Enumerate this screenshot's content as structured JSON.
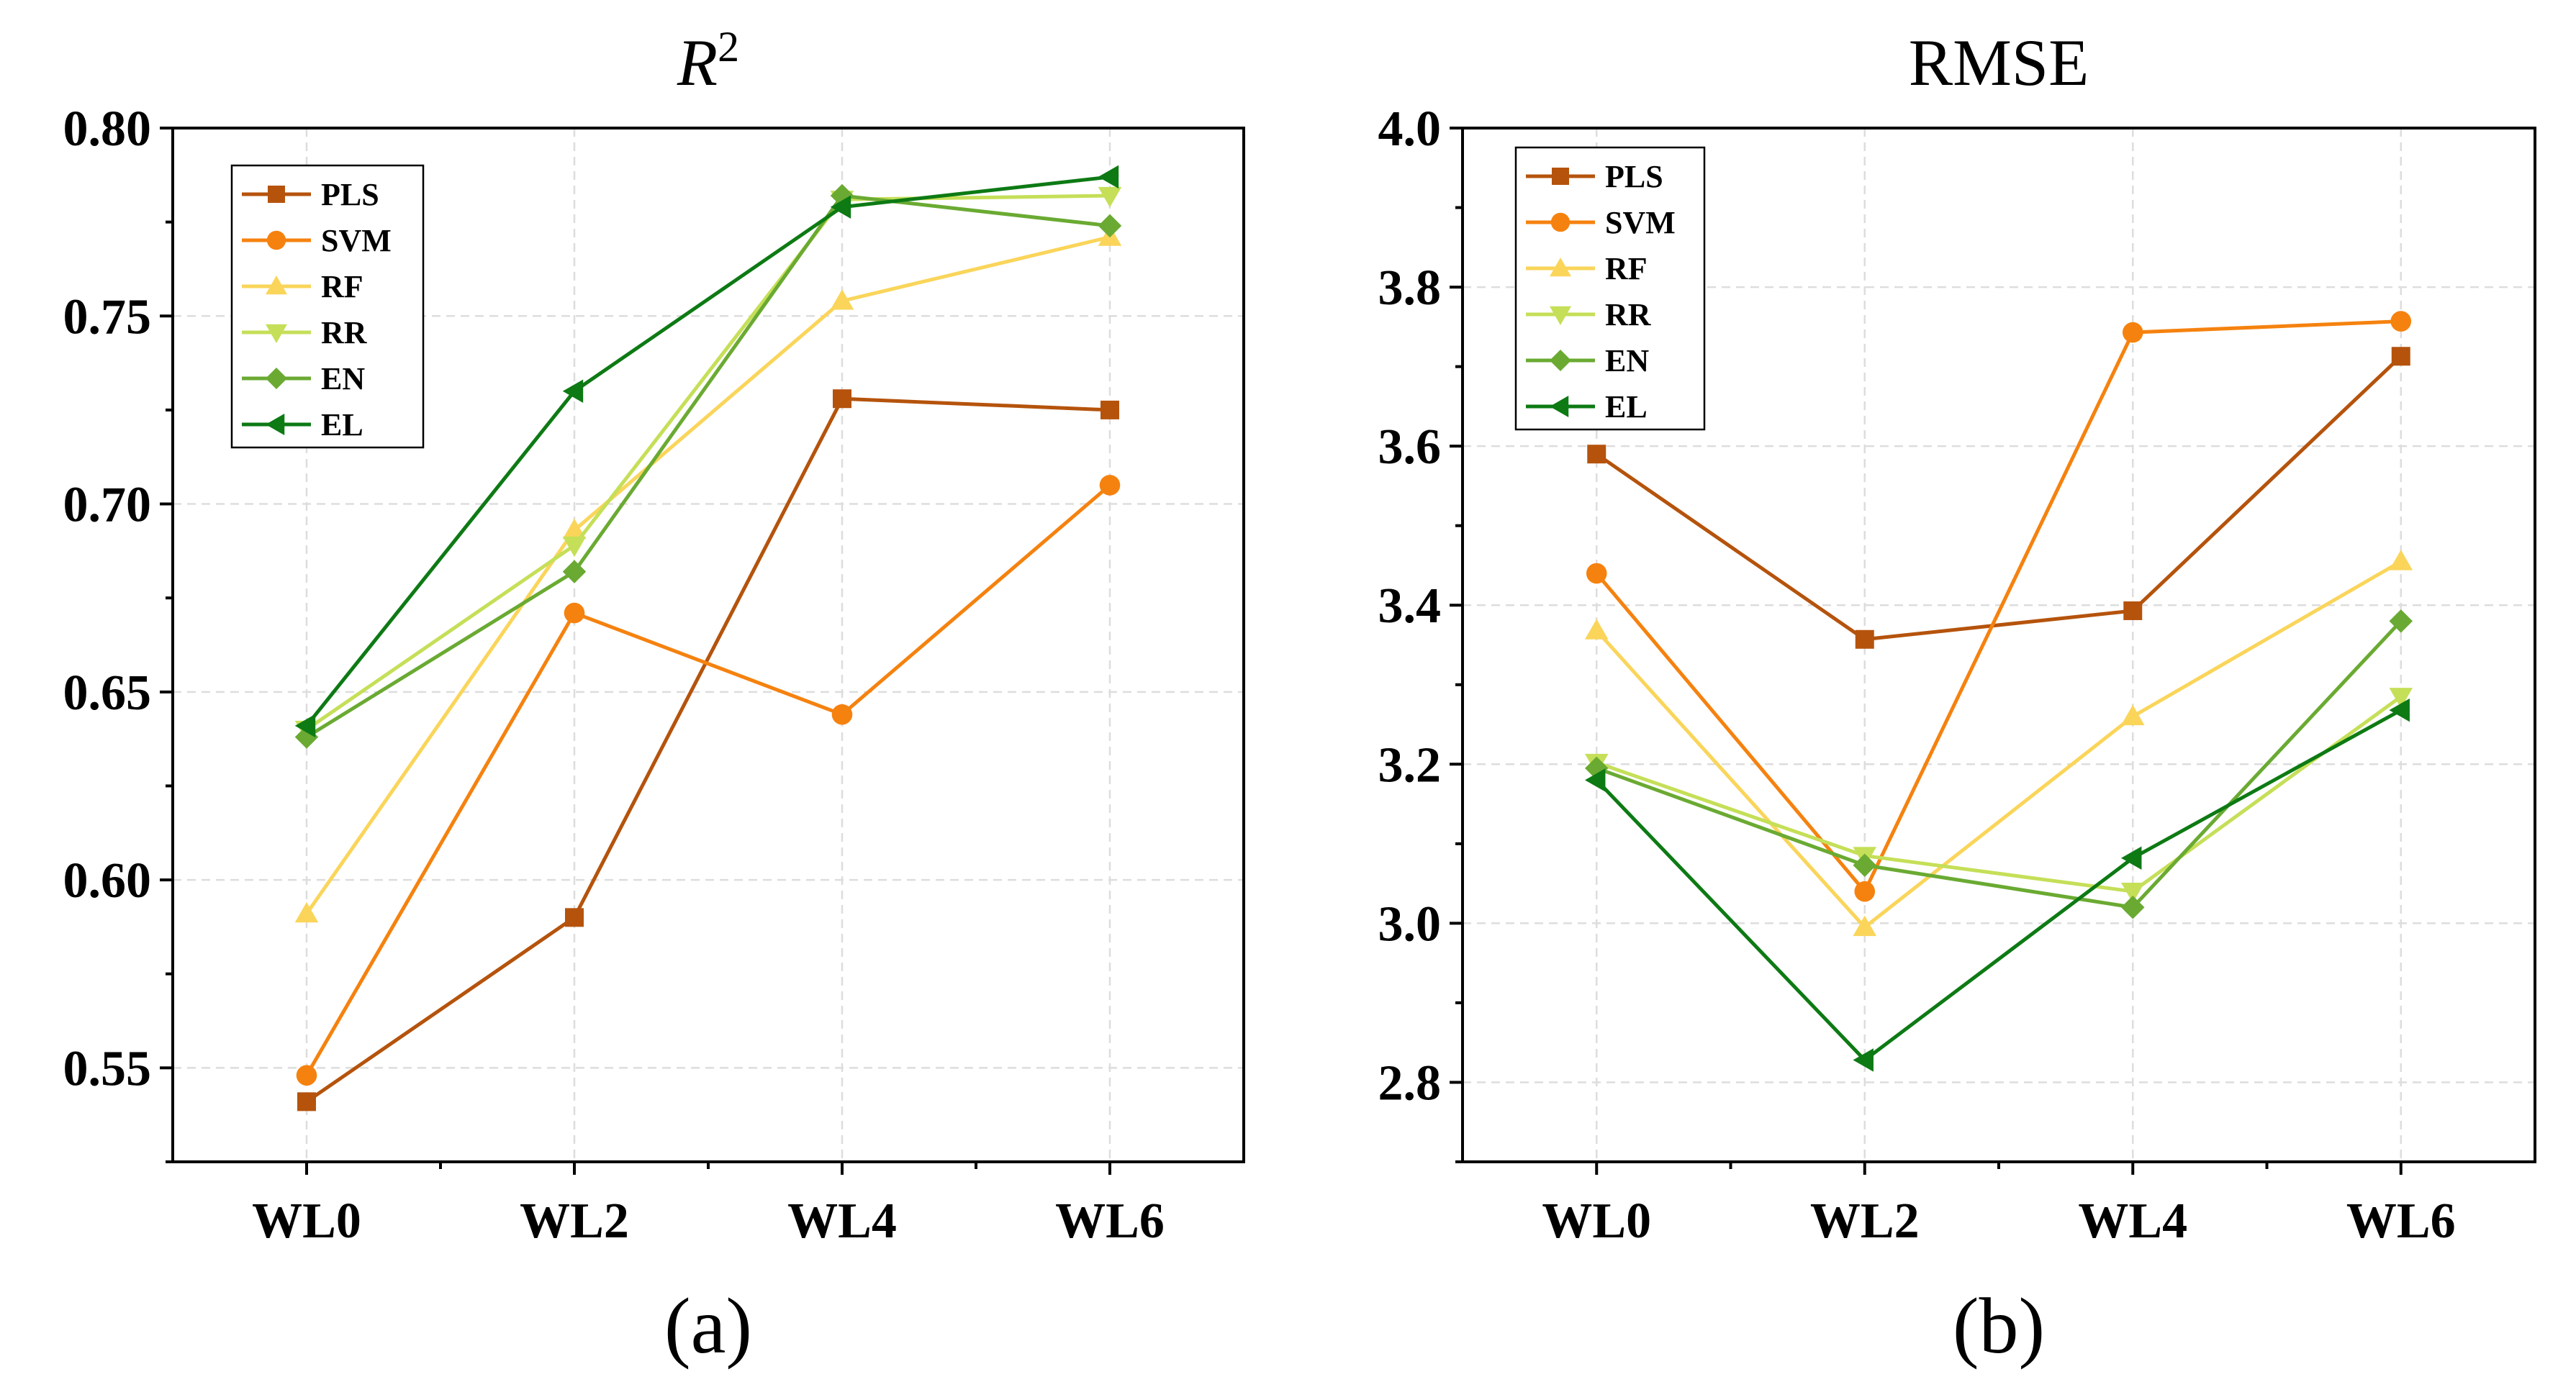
{
  "chart_data": [
    {
      "type": "line",
      "title_main": "R",
      "title_sup": "2",
      "caption": "(a)",
      "categories": [
        "WL0",
        "WL2",
        "WL4",
        "WL6"
      ],
      "ylim": [
        0.525,
        0.8
      ],
      "yticks": [
        0.55,
        0.6,
        0.65,
        0.7,
        0.75,
        0.8
      ],
      "ytick_labels": [
        "0.55",
        "0.60",
        "0.65",
        "0.70",
        "0.75",
        "0.80"
      ],
      "grid": true,
      "legend_position": "top-left",
      "series": [
        {
          "name": "PLS",
          "color": "#b5530c",
          "marker": "square",
          "values": [
            0.541,
            0.59,
            0.728,
            0.725
          ]
        },
        {
          "name": "SVM",
          "color": "#f5820f",
          "marker": "circle",
          "values": [
            0.548,
            0.671,
            0.644,
            0.705
          ]
        },
        {
          "name": "RF",
          "color": "#fad55a",
          "marker": "triangle-up",
          "values": [
            0.591,
            0.693,
            0.754,
            0.771
          ]
        },
        {
          "name": "RR",
          "color": "#c5df58",
          "marker": "triangle-down",
          "values": [
            0.64,
            0.689,
            0.781,
            0.782
          ]
        },
        {
          "name": "EN",
          "color": "#6aaa32",
          "marker": "diamond",
          "values": [
            0.638,
            0.682,
            0.782,
            0.774
          ]
        },
        {
          "name": "EL",
          "color": "#0d7a14",
          "marker": "triangle-left",
          "values": [
            0.641,
            0.73,
            0.779,
            0.787
          ]
        }
      ]
    },
    {
      "type": "line",
      "title_main": "RMSE",
      "title_sup": "",
      "caption": "(b)",
      "categories": [
        "WL0",
        "WL2",
        "WL4",
        "WL6"
      ],
      "ylim": [
        2.7,
        4.0
      ],
      "yticks": [
        2.8,
        3.0,
        3.2,
        3.4,
        3.6,
        3.8,
        4.0
      ],
      "ytick_labels": [
        "2.8",
        "3.0",
        "3.2",
        "3.4",
        "3.6",
        "3.8",
        "4.0"
      ],
      "grid": true,
      "legend_position": "top-left",
      "series": [
        {
          "name": "PLS",
          "color": "#b5530c",
          "marker": "square",
          "values": [
            3.59,
            3.357,
            3.393,
            3.713
          ]
        },
        {
          "name": "SVM",
          "color": "#f5820f",
          "marker": "circle",
          "values": [
            3.44,
            3.04,
            3.743,
            3.757
          ]
        },
        {
          "name": "RF",
          "color": "#fad55a",
          "marker": "triangle-up",
          "values": [
            3.368,
            2.995,
            3.26,
            3.455
          ]
        },
        {
          "name": "RR",
          "color": "#c5df58",
          "marker": "triangle-down",
          "values": [
            3.202,
            3.085,
            3.04,
            3.285
          ]
        },
        {
          "name": "EN",
          "color": "#6aaa32",
          "marker": "diamond",
          "values": [
            3.195,
            3.073,
            3.02,
            3.38
          ]
        },
        {
          "name": "EL",
          "color": "#0d7a14",
          "marker": "triangle-left",
          "values": [
            3.18,
            2.828,
            3.082,
            3.268
          ]
        }
      ]
    }
  ]
}
